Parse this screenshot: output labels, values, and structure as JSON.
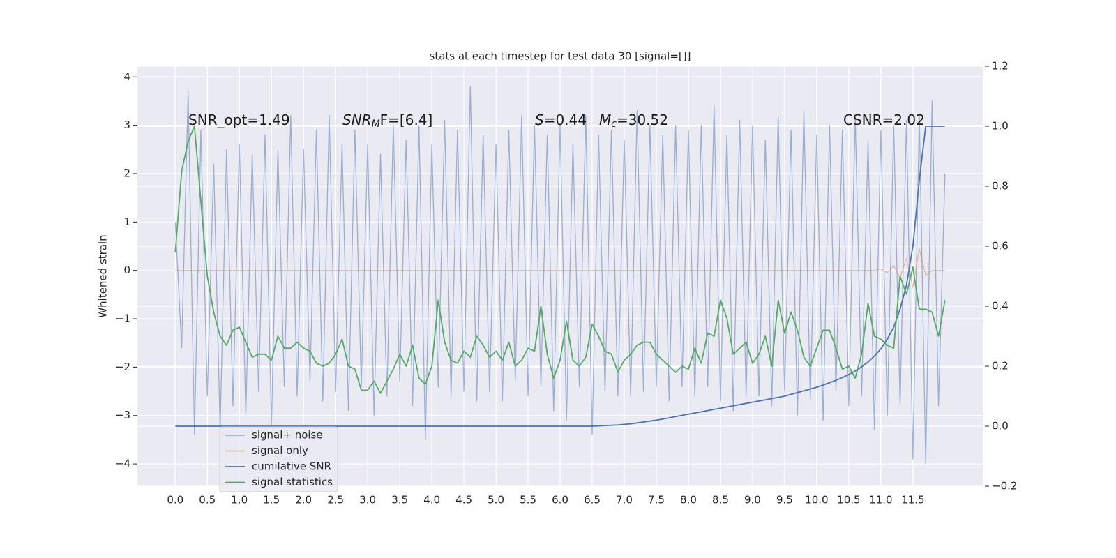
{
  "chart_data": {
    "type": "line",
    "title": "stats at each timestep for test data 30 [signal=[]]",
    "y_label": "Whitened strain",
    "annotations": [
      [
        {
          "text": "SNR_opt=1.49"
        }
      ],
      [
        {
          "text": "SNR",
          "italic": true
        },
        {
          "text": "M",
          "italic": true,
          "sub": true
        },
        {
          "text": "F=[6.4]"
        }
      ],
      [
        {
          "text": "S",
          "italic": true
        },
        {
          "text": "=0.44"
        }
      ],
      [
        {
          "text": "M",
          "italic": true
        },
        {
          "text": "c",
          "italic": true,
          "sub": true
        },
        {
          "text": "=30.52"
        }
      ],
      [
        {
          "text": "CSNR=2.02"
        }
      ]
    ],
    "grid": true,
    "legend": "lower left",
    "xlim": [
      -0.59,
      12.6
    ],
    "ylim": [
      -4.46,
      4.22
    ],
    "y2lim": [
      -0.2,
      1.2
    ],
    "xticks": [
      {
        "value": 0,
        "label": "0.0"
      },
      {
        "value": 0.5,
        "label": "0.5"
      },
      {
        "value": 1,
        "label": "1.0"
      },
      {
        "value": 1.5,
        "label": "1.5"
      },
      {
        "value": 2,
        "label": "2.0"
      },
      {
        "value": 2.5,
        "label": "2.5"
      },
      {
        "value": 3,
        "label": "3.0"
      },
      {
        "value": 3.5,
        "label": "3.5"
      },
      {
        "value": 4,
        "label": "4.0"
      },
      {
        "value": 4.5,
        "label": "4.5"
      },
      {
        "value": 5,
        "label": "5.0"
      },
      {
        "value": 5.5,
        "label": "5.5"
      },
      {
        "value": 6,
        "label": "6.0"
      },
      {
        "value": 6.5,
        "label": "6.5"
      },
      {
        "value": 7,
        "label": "7.0"
      },
      {
        "value": 7.5,
        "label": "7.5"
      },
      {
        "value": 8,
        "label": "8.0"
      },
      {
        "value": 8.5,
        "label": "8.5"
      },
      {
        "value": 9,
        "label": "9.0"
      },
      {
        "value": 9.5,
        "label": "9.5"
      },
      {
        "value": 10,
        "label": "10.0"
      },
      {
        "value": 10.5,
        "label": "10.5"
      },
      {
        "value": 11,
        "label": "11.0"
      },
      {
        "value": 11.5,
        "label": "11.5"
      }
    ],
    "yticks": [
      {
        "value": -4,
        "label": "−4"
      },
      {
        "value": -3,
        "label": "−3"
      },
      {
        "value": -2,
        "label": "−2"
      },
      {
        "value": -1,
        "label": "−1"
      },
      0,
      1,
      2,
      3,
      4
    ],
    "y2ticks": [
      {
        "value": -0.2,
        "label": "−0.2"
      },
      {
        "value": 0,
        "label": "0.0"
      },
      {
        "value": 0.2,
        "label": "0.2"
      },
      {
        "value": 0.4,
        "label": "0.4"
      },
      {
        "value": 0.6,
        "label": "0.6"
      },
      {
        "value": 0.8,
        "label": "0.8"
      },
      {
        "value": 1,
        "label": "1.0"
      },
      {
        "value": 1.2,
        "label": "1.2"
      }
    ],
    "x": [
      0,
      0.1,
      0.2,
      0.3,
      0.4,
      0.5,
      0.6,
      0.7,
      0.8,
      0.9,
      1,
      1.1,
      1.2,
      1.3,
      1.4,
      1.5,
      1.6,
      1.7,
      1.8,
      1.9,
      2,
      2.1,
      2.2,
      2.3,
      2.4,
      2.5,
      2.6,
      2.7,
      2.8,
      2.9,
      3,
      3.1,
      3.2,
      3.3,
      3.4,
      3.5,
      3.6,
      3.7,
      3.8,
      3.9,
      4,
      4.1,
      4.2,
      4.3,
      4.4,
      4.5,
      4.6,
      4.7,
      4.8,
      4.9,
      5,
      5.1,
      5.2,
      5.3,
      5.4,
      5.5,
      5.6,
      5.7,
      5.8,
      5.9,
      6,
      6.1,
      6.2,
      6.3,
      6.4,
      6.5,
      6.6,
      6.7,
      6.8,
      6.9,
      7,
      7.1,
      7.2,
      7.3,
      7.4,
      7.5,
      7.6,
      7.7,
      7.8,
      7.9,
      8,
      8.1,
      8.2,
      8.3,
      8.4,
      8.5,
      8.6,
      8.7,
      8.8,
      8.9,
      9,
      9.1,
      9.2,
      9.3,
      9.4,
      9.5,
      9.6,
      9.7,
      9.8,
      9.9,
      10,
      10.1,
      10.2,
      10.3,
      10.4,
      10.5,
      10.6,
      10.7,
      10.8,
      10.9,
      11,
      11.1,
      11.2,
      11.3,
      11.4,
      11.5,
      11.6,
      11.7,
      11.8,
      11.9,
      12
    ],
    "series": [
      {
        "name": "signal+ noise",
        "color": "#4c72b0",
        "alpha": 0.5,
        "values": [
          1.0,
          -1.6,
          3.7,
          -3.4,
          2.9,
          -2.6,
          2.2,
          -3.3,
          2.5,
          -2.8,
          2.6,
          -3.0,
          2.4,
          -2.5,
          2.8,
          -3.2,
          2.5,
          -2.4,
          3.2,
          -2.6,
          2.5,
          -2.3,
          2.9,
          -2.7,
          3.2,
          -2.5,
          2.6,
          -2.9,
          2.9,
          -2.4,
          2.6,
          -3.0,
          2.4,
          -2.6,
          3.0,
          -2.3,
          2.7,
          -2.8,
          3.0,
          -3.5,
          2.6,
          -2.4,
          3.1,
          -2.6,
          2.9,
          -2.5,
          3.8,
          -2.7,
          2.8,
          -2.5,
          2.6,
          -2.7,
          2.9,
          -2.3,
          3.2,
          -2.6,
          3.0,
          -2.4,
          2.8,
          -2.9,
          3.0,
          -3.1,
          2.6,
          -2.4,
          3.2,
          -3.4,
          2.8,
          -2.5,
          2.9,
          -2.6,
          2.7,
          -2.6,
          3.3,
          -2.5,
          3.0,
          -2.4,
          2.8,
          -2.7,
          3.0,
          -2.4,
          2.9,
          -2.6,
          3.0,
          -2.4,
          3.4,
          -2.7,
          2.8,
          -2.9,
          3.1,
          -2.6,
          3.0,
          -2.6,
          2.7,
          -2.8,
          3.2,
          -2.5,
          2.9,
          -3.0,
          3.3,
          -2.7,
          2.8,
          -3.1,
          3.0,
          -2.5,
          2.9,
          -2.8,
          3.2,
          -2.6,
          2.7,
          -3.3,
          2.9,
          -3.0,
          3.0,
          -2.8,
          3.1,
          -3.9,
          3.2,
          -4.0,
          3.5,
          -2.8,
          2.0
        ]
      },
      {
        "name": "signal only",
        "color": "#dd8452",
        "alpha": 0.5,
        "values": [
          0,
          0,
          0,
          0,
          0,
          0,
          0,
          0,
          0,
          0,
          0,
          0,
          0,
          0,
          0,
          0,
          0,
          0,
          0,
          0,
          0,
          0,
          0,
          0,
          0,
          0,
          0,
          0,
          0,
          0,
          0,
          0,
          0,
          0,
          0,
          0,
          0,
          0,
          0,
          0,
          0,
          0,
          0,
          0,
          0,
          0,
          0,
          0,
          0,
          0,
          0,
          0,
          0,
          0,
          0,
          0,
          0,
          0,
          0,
          0,
          0,
          0,
          0,
          0,
          0,
          0,
          0,
          0,
          0,
          0,
          0,
          0,
          0,
          0,
          0,
          0,
          0,
          0,
          0,
          0,
          0,
          0,
          0,
          0,
          0,
          0,
          0,
          0,
          0,
          0,
          0,
          0,
          0,
          0,
          0,
          0,
          0,
          0,
          0,
          0,
          0,
          0,
          0,
          0,
          0,
          0,
          0,
          0,
          0,
          0,
          0.03,
          -0.05,
          0.1,
          -0.15,
          0.25,
          -0.35,
          0.45,
          -0.1,
          0,
          0,
          0
        ]
      },
      {
        "name": "cumilative SNR",
        "color": "#4c72b0",
        "axis": "y2",
        "values": [
          0,
          0,
          0,
          0,
          0,
          0,
          0,
          0,
          0,
          0,
          0,
          0,
          0,
          0,
          0,
          0,
          0,
          0,
          0,
          0,
          0,
          0,
          0,
          0,
          0,
          0,
          0,
          0,
          0,
          0,
          0,
          0,
          0,
          0,
          0,
          0,
          0,
          0,
          0,
          0,
          0,
          0,
          0,
          0,
          0,
          0,
          0,
          0,
          0,
          0,
          0,
          0,
          0,
          0,
          0,
          0,
          0,
          0,
          0,
          0,
          0,
          0,
          0,
          0,
          0,
          0,
          0.001,
          0.002,
          0.003,
          0.004,
          0.006,
          0.008,
          0.011,
          0.014,
          0.017,
          0.02,
          0.024,
          0.028,
          0.032,
          0.036,
          0.04,
          0.044,
          0.048,
          0.052,
          0.056,
          0.06,
          0.064,
          0.068,
          0.072,
          0.076,
          0.08,
          0.084,
          0.088,
          0.092,
          0.096,
          0.1,
          0.106,
          0.112,
          0.118,
          0.124,
          0.13,
          0.137,
          0.145,
          0.153,
          0.162,
          0.172,
          0.184,
          0.198,
          0.214,
          0.234,
          0.258,
          0.29,
          0.33,
          0.39,
          0.47,
          0.6,
          0.82,
          1.0,
          1.0,
          1.0,
          1.0
        ]
      },
      {
        "name": "signal statistics",
        "color": "#55a868",
        "axis": "y2",
        "values": [
          0.58,
          0.85,
          0.95,
          1.0,
          0.75,
          0.5,
          0.38,
          0.3,
          0.27,
          0.32,
          0.33,
          0.28,
          0.23,
          0.24,
          0.24,
          0.22,
          0.3,
          0.26,
          0.26,
          0.28,
          0.26,
          0.25,
          0.21,
          0.2,
          0.21,
          0.24,
          0.29,
          0.2,
          0.19,
          0.12,
          0.12,
          0.15,
          0.11,
          0.15,
          0.19,
          0.24,
          0.2,
          0.27,
          0.16,
          0.14,
          0.2,
          0.42,
          0.28,
          0.22,
          0.21,
          0.25,
          0.23,
          0.3,
          0.27,
          0.23,
          0.25,
          0.22,
          0.28,
          0.2,
          0.22,
          0.26,
          0.25,
          0.4,
          0.24,
          0.16,
          0.22,
          0.35,
          0.22,
          0.2,
          0.23,
          0.34,
          0.3,
          0.25,
          0.24,
          0.18,
          0.22,
          0.24,
          0.27,
          0.28,
          0.28,
          0.24,
          0.22,
          0.2,
          0.18,
          0.2,
          0.19,
          0.26,
          0.21,
          0.31,
          0.3,
          0.42,
          0.36,
          0.24,
          0.26,
          0.28,
          0.21,
          0.24,
          0.3,
          0.2,
          0.42,
          0.31,
          0.38,
          0.32,
          0.23,
          0.2,
          0.26,
          0.32,
          0.32,
          0.26,
          0.19,
          0.2,
          0.16,
          0.24,
          0.41,
          0.3,
          0.29,
          0.27,
          0.26,
          0.5,
          0.44,
          0.53,
          0.39,
          0.39,
          0.38,
          0.3,
          0.42
        ]
      }
    ]
  }
}
